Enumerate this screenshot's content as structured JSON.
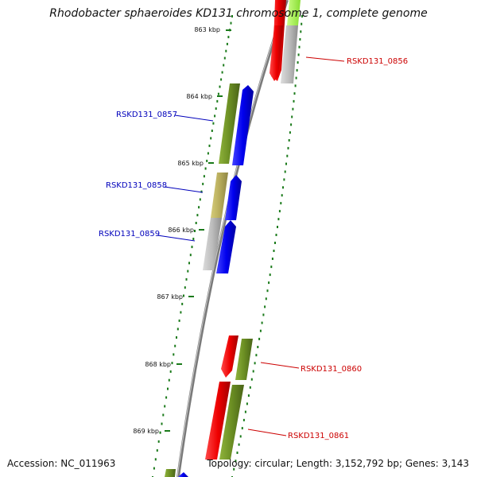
{
  "title": "Rhodobacter sphaeroides KD131 chromosome 1, complete genome",
  "accession": "Accession: NC_011963",
  "topology": "Topology: circular; Length: 3,152,792 bp; Genes: 3,143",
  "ticks": [
    "863 kbp",
    "864 kbp",
    "865 kbp",
    "866 kbp",
    "867 kbp",
    "868 kbp",
    "869 kbp"
  ],
  "gene_labels": [
    {
      "text": "RSKD131_0856",
      "color": "#cc0000"
    },
    {
      "text": "RSKD131_0857",
      "color": "#0000bb"
    },
    {
      "text": "RSKD131_0858",
      "color": "#0000bb"
    },
    {
      "text": "RSKD131_0859",
      "color": "#0000bb"
    },
    {
      "text": "RSKD131_0860",
      "color": "#cc0000"
    },
    {
      "text": "RSKD131_0861",
      "color": "#cc0000"
    }
  ],
  "colors": {
    "red": "#ee0000",
    "olive": "#6b8e23",
    "khaki": "#b8ad5c",
    "gray": "#b8b8b8",
    "blue": "#0000ee",
    "lime": "#aaff44",
    "backbone": "#808080",
    "tick": "#1a7a1a"
  }
}
